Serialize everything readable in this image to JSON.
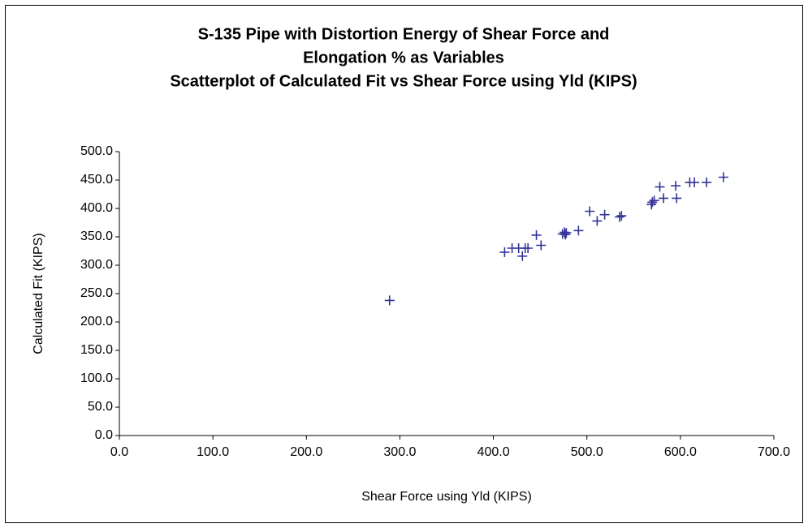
{
  "chart_data": {
    "type": "scatter",
    "title": [
      "S-135 Pipe with Distortion Energy of Shear Force and",
      "Elongation % as Variables",
      "Scatterplot of Calculated Fit vs Shear Force using Yld (KIPS)"
    ],
    "x_label": "Shear Force using Yld (KIPS)",
    "y_label": "Calculated Fit (KIPS)",
    "color": "#333399",
    "x": [
      289,
      412,
      420,
      427,
      431,
      434,
      437,
      446,
      451,
      474,
      476,
      477,
      478,
      491,
      503,
      511,
      519,
      535,
      537,
      569,
      570,
      572,
      578,
      582,
      595,
      596,
      610,
      615,
      628,
      646
    ],
    "values": [
      238,
      323,
      330,
      330,
      316,
      330,
      330,
      353,
      335,
      355,
      358,
      354,
      357,
      361,
      395,
      378,
      389,
      385,
      387,
      407,
      411,
      414,
      438,
      418,
      440,
      418,
      446,
      446,
      446,
      455
    ],
    "xlim": [
      0,
      700
    ],
    "xticks": [
      {
        "value": 0,
        "label": "0.0"
      },
      {
        "value": 100,
        "label": "100.0"
      },
      {
        "value": 200,
        "label": "200.0"
      },
      {
        "value": 300,
        "label": "300.0"
      },
      {
        "value": 400,
        "label": "400.0"
      },
      {
        "value": 500,
        "label": "500.0"
      },
      {
        "value": 600,
        "label": "600.0"
      },
      {
        "value": 700,
        "label": "700.0"
      }
    ],
    "ylim": [
      0,
      500
    ],
    "yticks": [
      {
        "value": 0,
        "label": "0.0"
      },
      {
        "value": 50,
        "label": "50.0"
      },
      {
        "value": 100,
        "label": "100.0"
      },
      {
        "value": 150,
        "label": "150.0"
      },
      {
        "value": 200,
        "label": "200.0"
      },
      {
        "value": 250,
        "label": "250.0"
      },
      {
        "value": 300,
        "label": "300.0"
      },
      {
        "value": 350,
        "label": "350.0"
      },
      {
        "value": 400,
        "label": "400.0"
      },
      {
        "value": 450,
        "label": "450.0"
      },
      {
        "value": 500,
        "label": "500.0"
      }
    ],
    "grid": false
  }
}
